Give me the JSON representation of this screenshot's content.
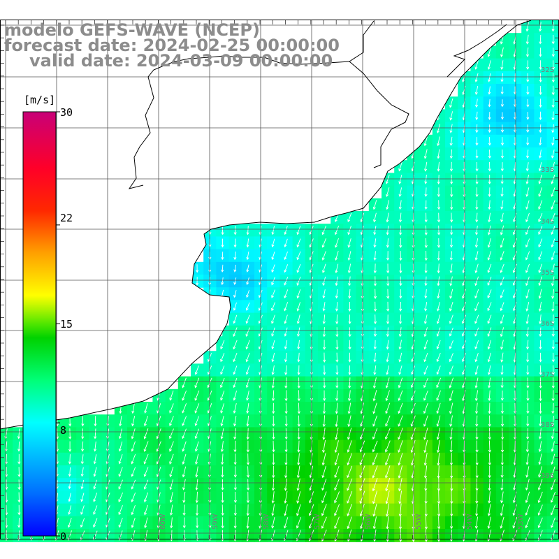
{
  "title": {
    "line1": "modelo GEFS-WAVE (NCEP)",
    "line2": "forecast date: 2024-02-25 00:00:00",
    "line3": "valid date: 2024-03-09 00:00:00"
  },
  "colorbar": {
    "unit": "[m/s]",
    "ticks": [
      "30",
      "22",
      "15",
      "8",
      "0"
    ],
    "tick_values": [
      30,
      22,
      15,
      8,
      0
    ],
    "range": [
      0,
      30
    ]
  },
  "graticule": {
    "lat_labels": [
      "32S",
      "33S",
      "34S",
      "35S",
      "36S",
      "37S",
      "38S",
      "39S",
      "40S",
      "41S"
    ],
    "lon_labels": [
      "60W",
      "59W",
      "58W",
      "57W",
      "56W",
      "55W",
      "54W",
      "53W",
      "52W"
    ]
  },
  "field": {
    "variable": "wind speed",
    "units": "m/s"
  },
  "colors": {
    "title": "#8c8c8c",
    "coast": "#000000",
    "grid": "#444444",
    "arrows": "#ffffff",
    "land": "#ffffff"
  }
}
